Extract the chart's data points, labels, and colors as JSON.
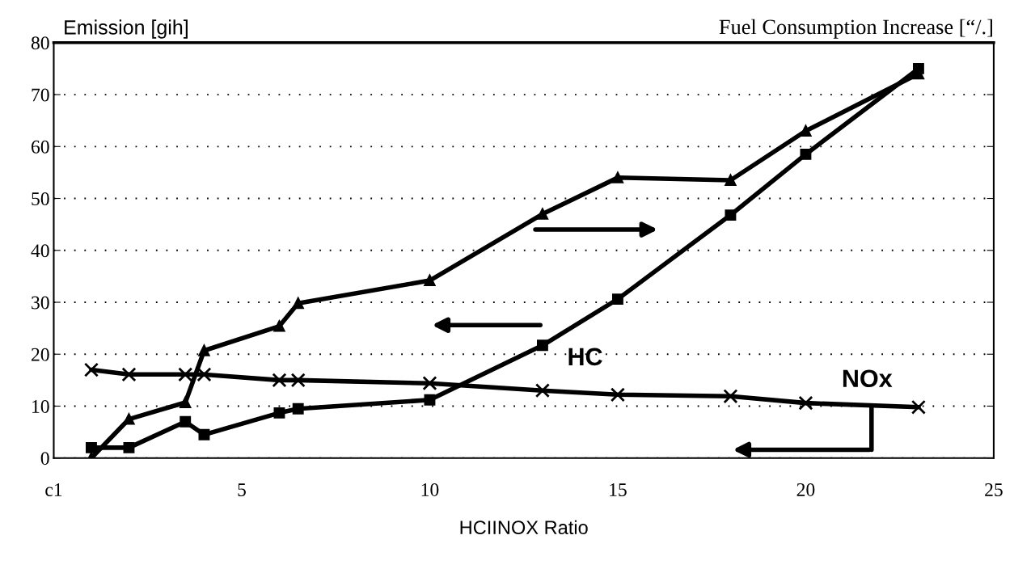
{
  "chart_data": {
    "type": "line",
    "xlabel": "HCIINOX Ratio",
    "ylabel": "Emission [gih]",
    "y2label": "Fuel Consumption Increase [“/.]",
    "xlim": [
      0,
      25
    ],
    "xticks": [
      {
        "value": 0,
        "label": "c1"
      },
      5,
      10,
      15,
      20,
      25
    ],
    "ylim": [
      0,
      80
    ],
    "yticks": [
      0,
      10,
      20,
      30,
      40,
      50,
      60,
      70,
      80
    ],
    "grid": "y",
    "legend": false,
    "line_style": "solid",
    "series": [
      {
        "color": "#000000",
        "marker": "triangle",
        "x": [
          1,
          2,
          3.5,
          4,
          6,
          6.5,
          10,
          13,
          15,
          18,
          20,
          23
        ],
        "values": [
          0,
          7.5,
          10.7,
          20.7,
          25.4,
          29.8,
          34.2,
          47,
          54,
          53.5,
          63,
          74
        ]
      },
      {
        "name": "HC",
        "color": "#000000",
        "marker": "square",
        "x": [
          1,
          2,
          3.5,
          4,
          6,
          6.5,
          10,
          13,
          15,
          18,
          20,
          23
        ],
        "values": [
          2,
          2,
          7,
          4.5,
          8.7,
          9.5,
          11.2,
          21.7,
          30.6,
          46.8,
          58.5,
          75
        ]
      },
      {
        "name": "NOx",
        "color": "#000000",
        "marker": "cross",
        "x": [
          1,
          2,
          3.5,
          4,
          6,
          6.5,
          10,
          13,
          15,
          18,
          20,
          23
        ],
        "values": [
          17,
          16.1,
          16.1,
          16.1,
          15,
          15,
          14.4,
          13,
          12.2,
          11.9,
          10.6,
          9.8
        ]
      }
    ]
  }
}
